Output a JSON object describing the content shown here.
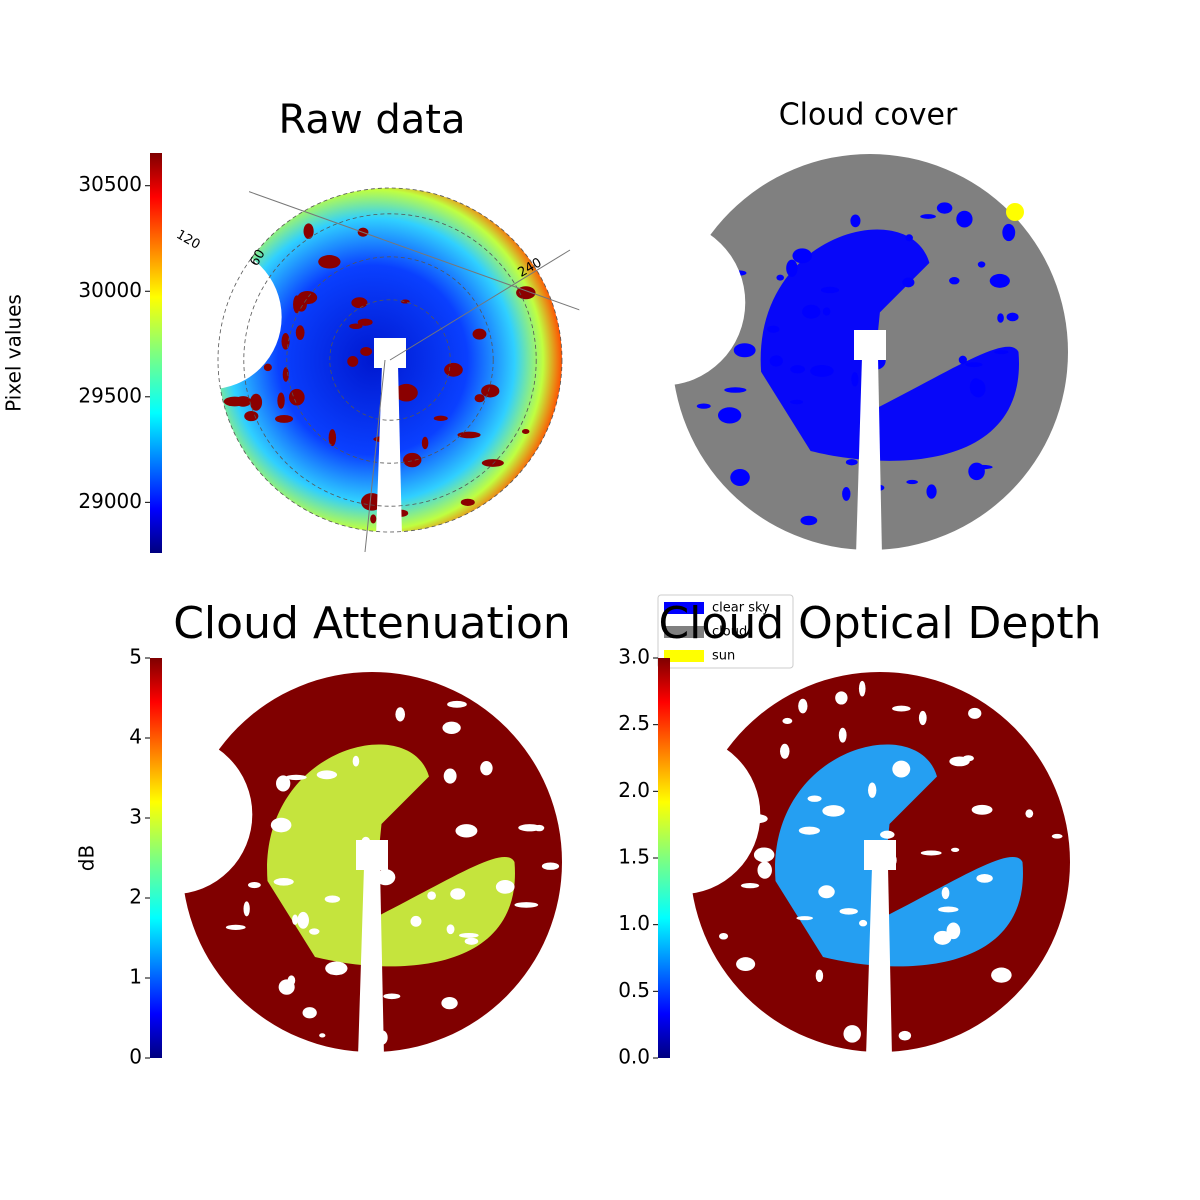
{
  "chart_data": [
    {
      "type": "image",
      "title": "Raw data",
      "ylabel": "Pixel values",
      "colormap": "jet",
      "ylim": [
        28760,
        30655
      ],
      "yticks": [
        29000,
        29500,
        30000,
        30500
      ],
      "annotations": [
        "120",
        "60",
        "240"
      ]
    },
    {
      "type": "image",
      "title": "Cloud cover",
      "series": [
        {
          "name": "clear sky",
          "color": "#0000ff"
        },
        {
          "name": "cloud",
          "color": "#808080"
        },
        {
          "name": "sun",
          "color": "#ffff00"
        }
      ]
    },
    {
      "type": "image",
      "title": "Cloud Attenuation",
      "ylabel": "dB",
      "colormap": "jet",
      "ylim": [
        0,
        5
      ],
      "yticks": [
        0,
        1,
        2,
        3,
        4,
        5
      ]
    },
    {
      "type": "image",
      "title": "Cloud Optical Depth",
      "colormap": "jet",
      "ylim": [
        0,
        3
      ],
      "yticks": [
        {
          "value": 0,
          "label": "0.0"
        },
        0.5,
        {
          "value": 1,
          "label": "1.0"
        },
        1.5,
        {
          "value": 2,
          "label": "2.0"
        },
        2.5,
        {
          "value": 3,
          "label": "3.0"
        }
      ]
    }
  ]
}
